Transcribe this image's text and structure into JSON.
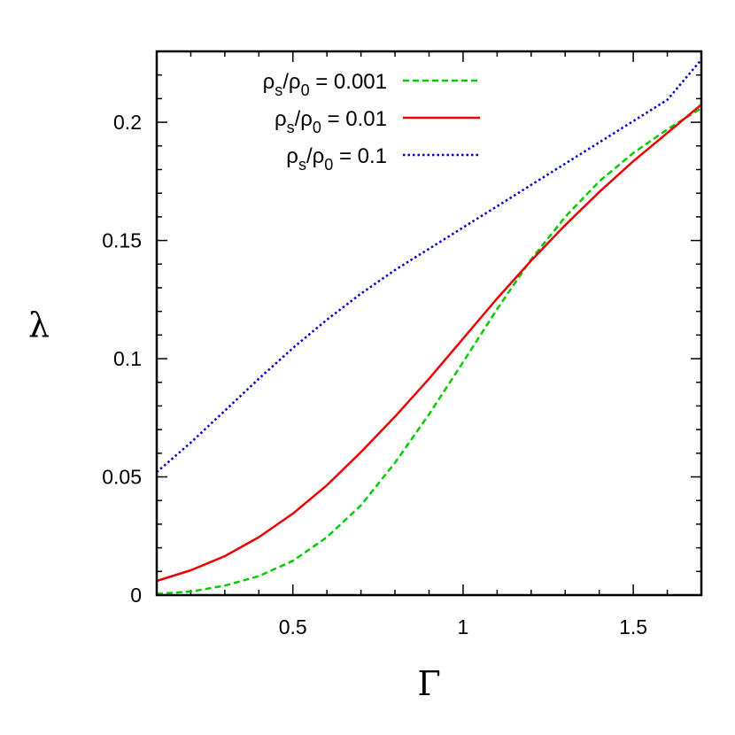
{
  "chart_data": {
    "type": "line",
    "xlabel": "Γ",
    "ylabel": "λ",
    "xlim": [
      0.1,
      1.7
    ],
    "ylim": [
      0,
      0.23
    ],
    "x_ticks": [
      0.5,
      1,
      1.5
    ],
    "x_tick_labels": [
      "0.5",
      "1",
      "1.5"
    ],
    "y_ticks": [
      0,
      0.05,
      0.1,
      0.15,
      0.2
    ],
    "y_tick_labels": [
      "0",
      "0.05",
      "0.1",
      "0.15",
      "0.2"
    ],
    "legend_position": "top-left",
    "grid": false,
    "series": [
      {
        "name": "ρs/ρ0 = 0.001",
        "name_parts": {
          "rho1": "ρ",
          "sub1": "s",
          "slash": "/",
          "rho2": "ρ",
          "sub2": "0",
          "rest": " = 0.001"
        },
        "color": "#00cc00",
        "dash": "dashed",
        "points": [
          [
            0.1,
            0.0005
          ],
          [
            0.2,
            0.0015
          ],
          [
            0.3,
            0.004
          ],
          [
            0.4,
            0.008
          ],
          [
            0.5,
            0.0145
          ],
          [
            0.6,
            0.0245
          ],
          [
            0.7,
            0.038
          ],
          [
            0.8,
            0.056
          ],
          [
            0.9,
            0.0765
          ],
          [
            1.0,
            0.0985
          ],
          [
            1.1,
            0.121
          ],
          [
            1.2,
            0.142
          ],
          [
            1.3,
            0.16
          ],
          [
            1.4,
            0.175
          ],
          [
            1.5,
            0.187
          ],
          [
            1.6,
            0.197
          ],
          [
            1.7,
            0.206
          ]
        ]
      },
      {
        "name": "ρs/ρ0 = 0.01",
        "name_parts": {
          "rho1": "ρ",
          "sub1": "s",
          "slash": "/",
          "rho2": "ρ",
          "sub2": "0",
          "rest": " = 0.01"
        },
        "color": "#ee0000",
        "dash": "solid",
        "points": [
          [
            0.1,
            0.006
          ],
          [
            0.2,
            0.0105
          ],
          [
            0.3,
            0.0165
          ],
          [
            0.4,
            0.0245
          ],
          [
            0.5,
            0.0345
          ],
          [
            0.6,
            0.0465
          ],
          [
            0.7,
            0.0605
          ],
          [
            0.8,
            0.0755
          ],
          [
            0.9,
            0.0915
          ],
          [
            1.0,
            0.1085
          ],
          [
            1.1,
            0.1255
          ],
          [
            1.2,
            0.1415
          ],
          [
            1.3,
            0.1565
          ],
          [
            1.4,
            0.1705
          ],
          [
            1.5,
            0.1835
          ],
          [
            1.6,
            0.1955
          ],
          [
            1.7,
            0.2075
          ]
        ]
      },
      {
        "name": "ρs/ρ0 = 0.1",
        "name_parts": {
          "rho1": "ρ",
          "sub1": "s",
          "slash": "/",
          "rho2": "ρ",
          "sub2": "0",
          "rest": " = 0.1"
        },
        "color": "#0000cc",
        "dash": "dotted",
        "points": [
          [
            0.1,
            0.052
          ],
          [
            0.2,
            0.0645
          ],
          [
            0.3,
            0.078
          ],
          [
            0.4,
            0.0915
          ],
          [
            0.5,
            0.1045
          ],
          [
            0.6,
            0.1165
          ],
          [
            0.7,
            0.1275
          ],
          [
            0.8,
            0.1375
          ],
          [
            0.9,
            0.1465
          ],
          [
            1.0,
            0.1555
          ],
          [
            1.1,
            0.1645
          ],
          [
            1.2,
            0.1735
          ],
          [
            1.3,
            0.1825
          ],
          [
            1.4,
            0.1915
          ],
          [
            1.5,
            0.2005
          ],
          [
            1.6,
            0.2095
          ],
          [
            1.7,
            0.2265
          ]
        ]
      }
    ]
  }
}
